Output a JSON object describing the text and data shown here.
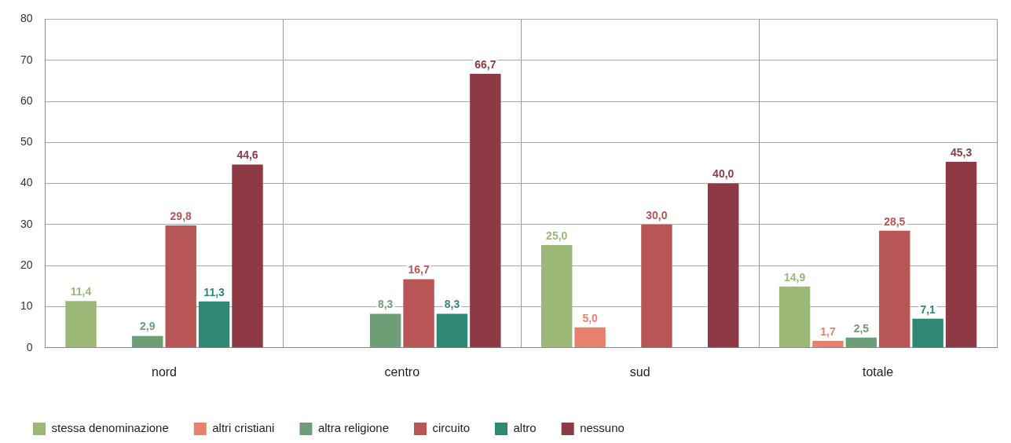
{
  "chart_data": {
    "type": "bar",
    "categories": [
      "nord",
      "centro",
      "sud",
      "totale"
    ],
    "series": [
      {
        "name": "stessa denominazione",
        "color": "#9bb877",
        "values": [
          11.4,
          null,
          25.0,
          14.9
        ],
        "value_labels": [
          "11,4",
          null,
          "25,0",
          "14,9"
        ]
      },
      {
        "name": "altri cristiani",
        "color": "#e8806e",
        "values": [
          null,
          null,
          5.0,
          1.7
        ],
        "value_labels": [
          null,
          null,
          "5,0",
          "1,7"
        ]
      },
      {
        "name": "altra religione",
        "color": "#6e9e76",
        "values": [
          2.9,
          8.3,
          null,
          2.5
        ],
        "value_labels": [
          "2,9",
          "8,3",
          null,
          "2,5"
        ]
      },
      {
        "name": "circuito",
        "color": "#b85555",
        "values": [
          29.8,
          16.7,
          30.0,
          28.5
        ],
        "value_labels": [
          "29,8",
          "16,7",
          "30,0",
          "28,5"
        ]
      },
      {
        "name": "altro",
        "color": "#2e8873",
        "values": [
          11.3,
          8.3,
          null,
          7.1
        ],
        "value_labels": [
          "11,3",
          "8,3",
          null,
          "7,1"
        ]
      },
      {
        "name": "nessuno",
        "color": "#8e3a45",
        "values": [
          44.6,
          66.7,
          40.0,
          45.3
        ],
        "value_labels": [
          "44,6",
          "66,7",
          "40,0",
          "45,3"
        ]
      }
    ],
    "ylim": [
      0,
      80
    ],
    "yticks": [
      0,
      10,
      20,
      30,
      40,
      50,
      60,
      70,
      80
    ],
    "grid": true,
    "legend": "bottom"
  }
}
